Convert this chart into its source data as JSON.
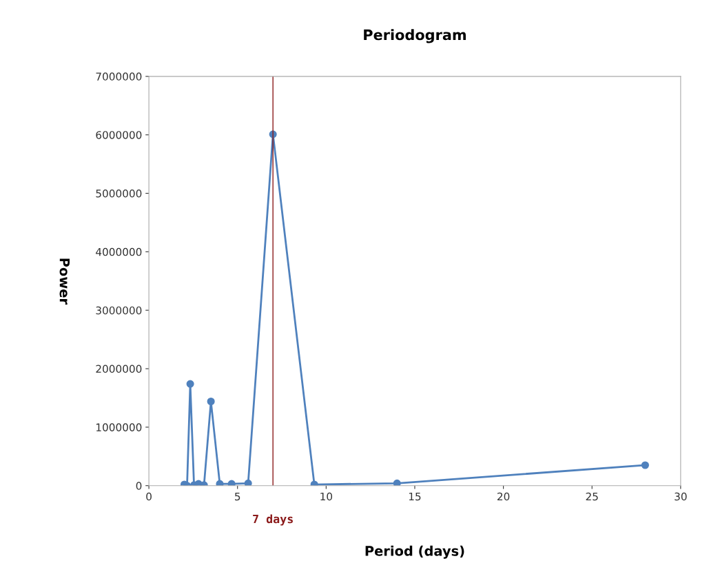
{
  "chart_data": {
    "type": "line",
    "title": "Periodogram",
    "xlabel": "Period (days)",
    "ylabel": "Power",
    "x": [
      2.0,
      2.154,
      2.333,
      2.545,
      2.8,
      3.111,
      3.5,
      4.0,
      4.667,
      5.6,
      7.0,
      9.333,
      14.0,
      28.0
    ],
    "series": [
      {
        "color": "#4f81bd",
        "values": [
          20000,
          0,
          1740000,
          10000,
          30000,
          10000,
          1440000,
          30000,
          30000,
          40000,
          6010000,
          20000,
          40000,
          350000
        ]
      }
    ],
    "xlim": [
      0,
      30
    ],
    "xticks": [
      0,
      5,
      10,
      15,
      20,
      25,
      30
    ],
    "ylim": [
      0,
      7000000
    ],
    "yticks": [
      0,
      1000000,
      2000000,
      3000000,
      4000000,
      5000000,
      6000000,
      7000000
    ],
    "ref_lines": [
      {
        "axis": "x",
        "value": 7,
        "label": "7 days",
        "color": "#8b1a1a"
      }
    ],
    "grid": false,
    "legend": false,
    "marker": "circle",
    "line_style": "solid"
  }
}
